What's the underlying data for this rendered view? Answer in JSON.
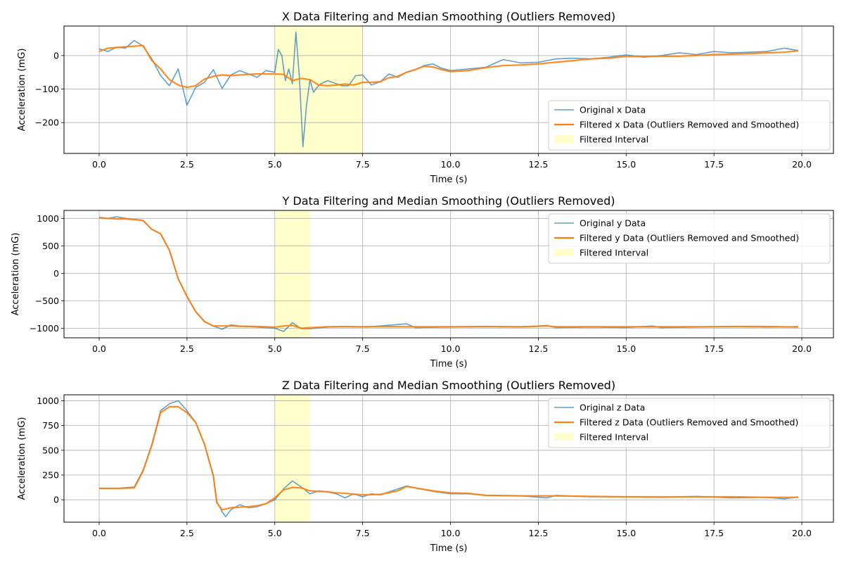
{
  "figure": {
    "colors": {
      "original": "#1f77b4",
      "filtered": "#ff7f0e",
      "interval": "#ffff99",
      "grid": "#b0b0b0"
    }
  },
  "chart_data": [
    {
      "type": "line",
      "title": "X Data Filtering and Median Smoothing (Outliers Removed)",
      "xlabel": "Time (s)",
      "ylabel": "Acceleration (mG)",
      "xlim": [
        -1.0,
        20.9
      ],
      "ylim": [
        -292,
        88
      ],
      "xticks": [
        0,
        2.5,
        5,
        7.5,
        10,
        12.5,
        15,
        17.5,
        20
      ],
      "xtick_labels": [
        "0.0",
        "2.5",
        "5.0",
        "7.5",
        "10.0",
        "12.5",
        "15.0",
        "17.5",
        "20.0"
      ],
      "yticks": [
        -200,
        -100,
        0
      ],
      "ytick_labels": [
        "−200",
        "−100",
        "0"
      ],
      "grid": true,
      "legend_position": "lower-right",
      "highlight": {
        "label": "Filtered Interval",
        "x": [
          5.0,
          7.5
        ]
      },
      "series": [
        {
          "name": "Original x Data",
          "x": [
            0,
            0.25,
            0.5,
            0.75,
            1.0,
            1.25,
            1.5,
            1.75,
            2.0,
            2.25,
            2.5,
            2.75,
            3.0,
            3.25,
            3.5,
            3.75,
            4.0,
            4.25,
            4.5,
            4.75,
            5.0,
            5.1,
            5.2,
            5.3,
            5.4,
            5.5,
            5.6,
            5.7,
            5.8,
            5.9,
            6.0,
            6.1,
            6.2,
            6.3,
            6.5,
            6.7,
            6.9,
            7.1,
            7.3,
            7.5,
            7.75,
            8.0,
            8.25,
            8.5,
            8.75,
            9.0,
            9.25,
            9.5,
            9.75,
            10.0,
            10.5,
            11.0,
            11.5,
            12.0,
            12.5,
            13.0,
            13.5,
            14.0,
            14.5,
            15.0,
            15.5,
            16.0,
            16.5,
            17.0,
            17.5,
            18.0,
            18.5,
            19.0,
            19.5,
            19.9
          ],
          "y": [
            20,
            12,
            25,
            22,
            45,
            28,
            -10,
            -60,
            -90,
            -40,
            -148,
            -95,
            -80,
            -42,
            -98,
            -58,
            -45,
            -55,
            -65,
            -45,
            -50,
            18,
            0,
            -75,
            -40,
            -85,
            70,
            -65,
            -272,
            -150,
            -72,
            -110,
            -95,
            -85,
            -75,
            -82,
            -90,
            -90,
            -60,
            -58,
            -88,
            -78,
            -55,
            -65,
            -50,
            -42,
            -30,
            -25,
            -38,
            -45,
            -40,
            -35,
            -12,
            -22,
            -20,
            -10,
            -8,
            -10,
            -5,
            2,
            -5,
            0,
            8,
            3,
            12,
            8,
            10,
            12,
            22,
            15
          ]
        },
        {
          "name": "Filtered x Data (Outliers Removed and Smoothed)",
          "x": [
            0,
            0.25,
            0.5,
            0.75,
            1.0,
            1.25,
            1.5,
            1.75,
            2.0,
            2.25,
            2.5,
            2.75,
            3.0,
            3.25,
            3.5,
            3.75,
            4.0,
            4.25,
            4.5,
            4.75,
            5.0,
            5.25,
            5.5,
            5.75,
            6.0,
            6.25,
            6.5,
            6.75,
            7.0,
            7.25,
            7.5,
            7.75,
            8.0,
            8.25,
            8.5,
            8.75,
            9.0,
            9.25,
            9.5,
            9.75,
            10.0,
            10.5,
            11.0,
            11.5,
            12.0,
            12.5,
            13.0,
            13.5,
            14.0,
            14.5,
            15.0,
            15.5,
            16.0,
            16.5,
            17.0,
            17.5,
            18.0,
            18.5,
            19.0,
            19.5,
            19.9
          ],
          "y": [
            12,
            22,
            24,
            26,
            28,
            30,
            -15,
            -40,
            -72,
            -88,
            -95,
            -90,
            -70,
            -62,
            -58,
            -60,
            -58,
            -56,
            -55,
            -55,
            -55,
            -56,
            -75,
            -68,
            -72,
            -88,
            -90,
            -88,
            -85,
            -88,
            -80,
            -80,
            -78,
            -66,
            -62,
            -50,
            -42,
            -32,
            -34,
            -42,
            -48,
            -45,
            -36,
            -30,
            -28,
            -25,
            -20,
            -15,
            -10,
            -8,
            -3,
            -3,
            -2,
            -2,
            0,
            3,
            4,
            6,
            8,
            10,
            14
          ]
        }
      ]
    },
    {
      "type": "line",
      "title": "Y Data Filtering and Median Smoothing (Outliers Removed)",
      "xlabel": "Time (s)",
      "ylabel": "Acceleration (mG)",
      "xlim": [
        -1.0,
        20.9
      ],
      "ylim": [
        -1175,
        1145
      ],
      "xticks": [
        0,
        2.5,
        5,
        7.5,
        10,
        12.5,
        15,
        17.5,
        20
      ],
      "xtick_labels": [
        "0.0",
        "2.5",
        "5.0",
        "7.5",
        "10.0",
        "12.5",
        "15.0",
        "17.5",
        "20.0"
      ],
      "yticks": [
        -1000,
        -500,
        0,
        500,
        1000
      ],
      "ytick_labels": [
        "−1000",
        "−500",
        "0",
        "500",
        "1000"
      ],
      "grid": true,
      "legend_position": "upper-right",
      "highlight": {
        "label": "Filtered Interval",
        "x": [
          5.0,
          6.0
        ]
      },
      "series": [
        {
          "name": "Original y Data",
          "x": [
            0,
            0.25,
            0.5,
            0.75,
            1.0,
            1.25,
            1.5,
            1.75,
            2.0,
            2.25,
            2.5,
            2.75,
            3.0,
            3.25,
            3.5,
            3.75,
            4.0,
            4.5,
            5.0,
            5.25,
            5.5,
            5.75,
            6.0,
            6.5,
            7.0,
            7.5,
            8.0,
            8.75,
            9.0,
            10.0,
            11.0,
            12.0,
            12.75,
            13.0,
            14.0,
            15.0,
            15.75,
            16.0,
            17.0,
            18.0,
            19.0,
            19.9
          ],
          "y": [
            1020,
            1000,
            1030,
            1000,
            980,
            960,
            800,
            720,
            420,
            -100,
            -420,
            -700,
            -880,
            -960,
            -1020,
            -940,
            -960,
            -980,
            -1000,
            -1060,
            -900,
            -1010,
            -1010,
            -980,
            -970,
            -980,
            -960,
            -920,
            -990,
            -980,
            -970,
            -980,
            -950,
            -990,
            -980,
            -990,
            -960,
            -990,
            -980,
            -970,
            -980,
            -970
          ]
        },
        {
          "name": "Filtered y Data (Outliers Removed and Smoothed)",
          "x": [
            0,
            0.25,
            0.5,
            0.75,
            1.0,
            1.25,
            1.5,
            1.75,
            2.0,
            2.25,
            2.5,
            2.75,
            3.0,
            3.25,
            3.5,
            3.75,
            4.0,
            4.5,
            5.0,
            5.25,
            5.5,
            5.75,
            6.0,
            6.5,
            7.0,
            7.5,
            8.0,
            9.0,
            10.0,
            11.0,
            12.0,
            12.75,
            13.0,
            14.0,
            15.0,
            16.0,
            17.0,
            18.0,
            19.0,
            19.9
          ],
          "y": [
            1010,
            1000,
            990,
            990,
            980,
            960,
            800,
            720,
            420,
            -100,
            -420,
            -700,
            -880,
            -960,
            -960,
            -960,
            -965,
            -970,
            -980,
            -960,
            -950,
            -1000,
            -990,
            -975,
            -970,
            -975,
            -970,
            -975,
            -975,
            -970,
            -975,
            -960,
            -975,
            -975,
            -975,
            -975,
            -975,
            -970,
            -970,
            -980
          ]
        }
      ]
    },
    {
      "type": "line",
      "title": "Z Data Filtering and Median Smoothing (Outliers Removed)",
      "xlabel": "Time (s)",
      "ylabel": "Acceleration (mG)",
      "xlim": [
        -1.0,
        20.9
      ],
      "ylim": [
        -226,
        1060
      ],
      "xticks": [
        0,
        2.5,
        5,
        7.5,
        10,
        12.5,
        15,
        17.5,
        20
      ],
      "xtick_labels": [
        "0.0",
        "2.5",
        "5.0",
        "7.5",
        "10.0",
        "12.5",
        "15.0",
        "17.5",
        "20.0"
      ],
      "yticks": [
        0,
        250,
        500,
        750,
        1000
      ],
      "ytick_labels": [
        "0",
        "250",
        "500",
        "750",
        "1000"
      ],
      "grid": true,
      "legend_position": "upper-right",
      "highlight": {
        "label": "Filtered Interval",
        "x": [
          5.0,
          6.0
        ]
      },
      "series": [
        {
          "name": "Original z Data",
          "x": [
            0,
            0.5,
            1.0,
            1.25,
            1.5,
            1.75,
            2.0,
            2.25,
            2.5,
            2.75,
            3.0,
            3.25,
            3.35,
            3.5,
            3.6,
            3.75,
            4.0,
            4.25,
            4.5,
            4.75,
            5.0,
            5.25,
            5.5,
            5.75,
            6.0,
            6.25,
            6.5,
            6.75,
            7.0,
            7.25,
            7.5,
            7.75,
            8.0,
            8.25,
            8.5,
            8.75,
            9.0,
            9.5,
            10.0,
            10.5,
            11.0,
            12.0,
            12.75,
            13.0,
            14.0,
            15.0,
            16.0,
            17.0,
            18.0,
            19.0,
            19.5,
            19.9
          ],
          "y": [
            115,
            115,
            130,
            300,
            560,
            900,
            970,
            1000,
            900,
            780,
            560,
            250,
            -20,
            -120,
            -170,
            -100,
            -50,
            -80,
            -70,
            -40,
            0,
            110,
            190,
            130,
            60,
            90,
            80,
            60,
            20,
            60,
            30,
            60,
            50,
            80,
            110,
            140,
            120,
            85,
            60,
            60,
            45,
            40,
            20,
            45,
            30,
            30,
            25,
            35,
            20,
            25,
            10,
            30
          ]
        },
        {
          "name": "Filtered z Data (Outliers Removed and Smoothed)",
          "x": [
            0,
            0.5,
            1.0,
            1.25,
            1.5,
            1.75,
            2.0,
            2.25,
            2.5,
            2.75,
            3.0,
            3.25,
            3.35,
            3.5,
            3.75,
            4.0,
            4.25,
            4.5,
            4.75,
            5.0,
            5.25,
            5.5,
            5.75,
            6.0,
            6.25,
            6.5,
            6.75,
            7.0,
            7.5,
            8.0,
            8.5,
            8.75,
            9.0,
            9.5,
            10.0,
            10.5,
            11.0,
            12.0,
            13.0,
            14.0,
            15.0,
            16.0,
            17.0,
            18.0,
            19.0,
            19.9
          ],
          "y": [
            115,
            115,
            120,
            290,
            550,
            880,
            940,
            940,
            880,
            780,
            560,
            240,
            -30,
            -100,
            -80,
            -75,
            -70,
            -60,
            -40,
            20,
            100,
            125,
            120,
            90,
            85,
            80,
            70,
            65,
            50,
            55,
            90,
            135,
            120,
            90,
            70,
            65,
            45,
            40,
            40,
            35,
            30,
            30,
            30,
            30,
            25,
            25
          ]
        }
      ]
    }
  ]
}
